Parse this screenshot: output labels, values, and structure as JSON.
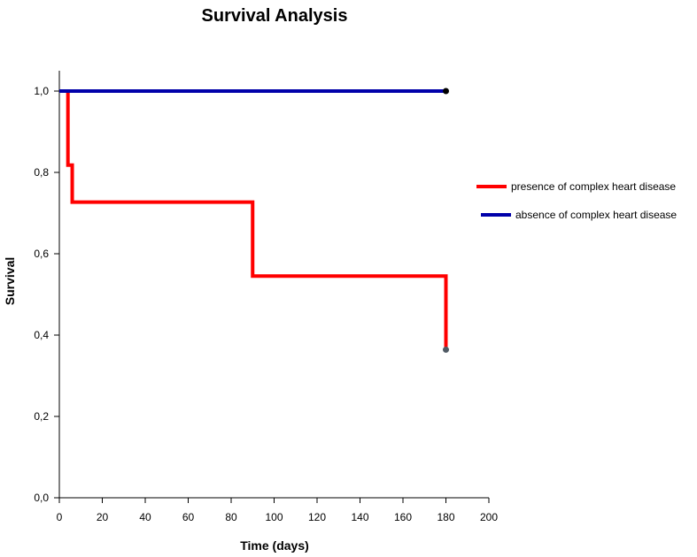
{
  "chart_data": {
    "type": "line",
    "title": "Survival Analysis",
    "xlabel": "Time (days)",
    "ylabel": "Survival",
    "xlim": [
      0,
      200
    ],
    "ylim": [
      0,
      1.05
    ],
    "x_ticks": [
      0,
      20,
      40,
      60,
      80,
      100,
      120,
      140,
      160,
      180,
      200
    ],
    "x_tick_labels": [
      "0",
      "20",
      "40",
      "60",
      "80",
      "100",
      "120",
      "140",
      "160",
      "180",
      "200"
    ],
    "y_ticks": [
      0,
      0.2,
      0.4,
      0.6,
      0.8,
      1.0
    ],
    "y_tick_labels": [
      "0,0",
      "0,2",
      "0,4",
      "0,6",
      "0,8",
      "1,0"
    ],
    "grid": false,
    "legend_position": "right",
    "series": [
      {
        "name": "presence of complex heart disease",
        "color": "#ff0000",
        "step": true,
        "x": [
          0,
          4,
          6,
          90,
          180,
          180
        ],
        "y": [
          1.0,
          0.818,
          0.727,
          0.545,
          0.545,
          0.364
        ],
        "end_marker": {
          "x": 180,
          "y": 0.364,
          "color": "#505a64"
        }
      },
      {
        "name": "absence of complex heart disease",
        "color": "#0000aa",
        "step": true,
        "x": [
          0,
          180
        ],
        "y": [
          1.0,
          1.0
        ],
        "end_marker": {
          "x": 180,
          "y": 1.0,
          "color": "#000000"
        }
      }
    ]
  }
}
